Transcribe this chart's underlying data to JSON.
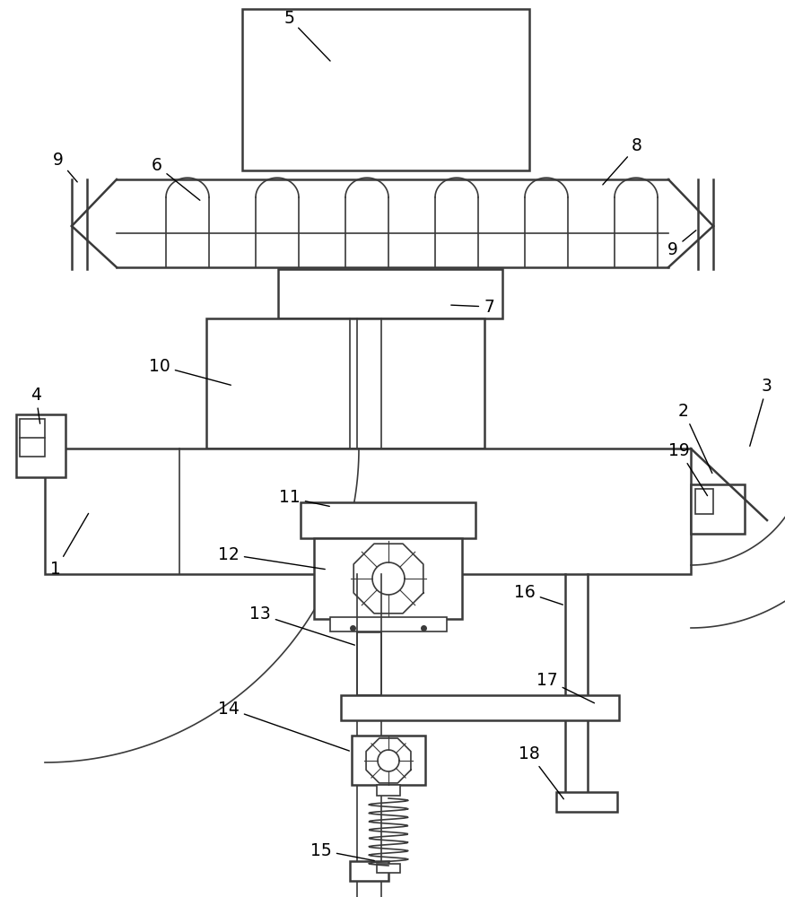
{
  "bg_color": "#ffffff",
  "line_color": "#3a3a3a",
  "line_width": 1.8,
  "figsize": [
    8.75,
    10.0
  ],
  "dpi": 100
}
